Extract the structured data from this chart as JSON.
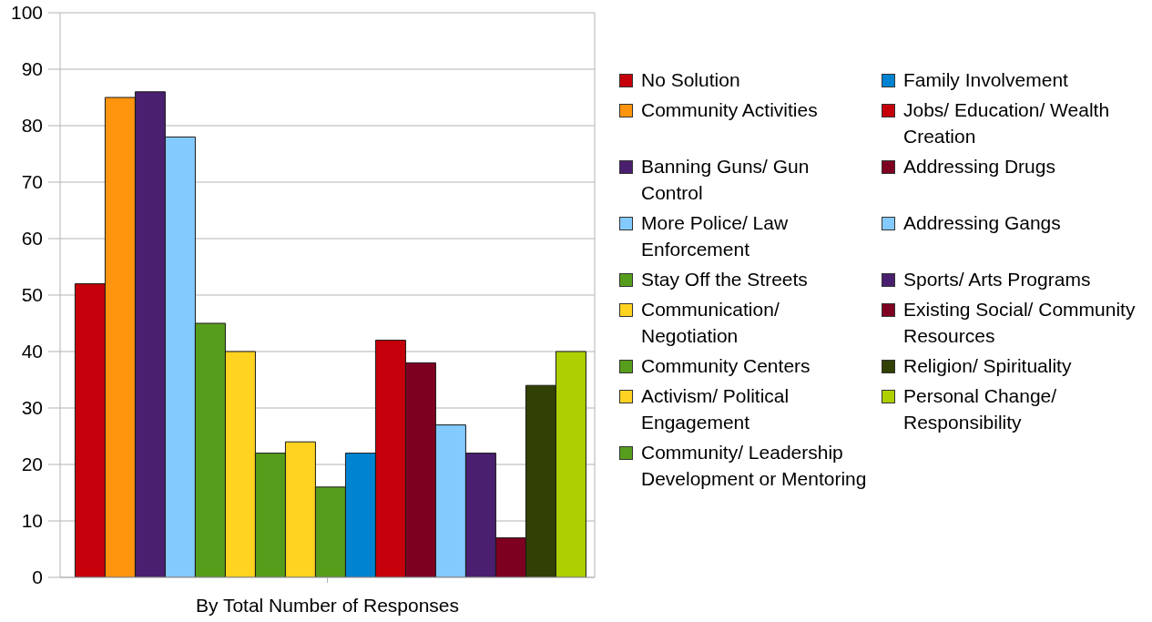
{
  "chart_data": {
    "type": "bar",
    "categories": [
      "By Total Number of Responses"
    ],
    "series": [
      {
        "name": "No Solution",
        "color": "#c5000b",
        "values": [
          52
        ]
      },
      {
        "name": "Community Activities",
        "color": "#ff950e",
        "values": [
          85
        ]
      },
      {
        "name": "Banning Guns/ Gun Control",
        "color": "#4b1f6f",
        "values": [
          86
        ]
      },
      {
        "name": "More Police/ Law Enforcement",
        "color": "#83caff",
        "values": [
          78
        ]
      },
      {
        "name": "Stay Off the Streets",
        "color": "#579d1c",
        "values": [
          45
        ]
      },
      {
        "name": "Communication/ Negotiation",
        "color": "#ffd320",
        "values": [
          40
        ]
      },
      {
        "name": "Community Centers",
        "color": "#579d1c",
        "values": [
          22
        ]
      },
      {
        "name": "Activism/ Political Engagement",
        "color": "#ffd320",
        "values": [
          24
        ]
      },
      {
        "name": "Community/ Leadership Development or Mentoring",
        "color": "#579d1c",
        "values": [
          16
        ]
      },
      {
        "name": "Family Involvement",
        "color": "#0084d1",
        "values": [
          22
        ]
      },
      {
        "name": "Jobs/ Education/ Wealth Creation",
        "color": "#c5000b",
        "values": [
          42
        ]
      },
      {
        "name": "Addressing Drugs",
        "color": "#7e0021",
        "values": [
          38
        ]
      },
      {
        "name": "Addressing Gangs",
        "color": "#83caff",
        "values": [
          27
        ]
      },
      {
        "name": "Sports/ Arts Programs",
        "color": "#4b1f6f",
        "values": [
          22
        ]
      },
      {
        "name": "Existing Social/ Community Resources",
        "color": "#7e0021",
        "values": [
          7
        ]
      },
      {
        "name": "Religion/ Spirituality",
        "color": "#314004",
        "values": [
          34
        ]
      },
      {
        "name": "Personal Change/ Responsibility",
        "color": "#aecf00",
        "values": [
          40
        ]
      }
    ],
    "ylim": [
      0,
      100
    ],
    "yticks": [
      0,
      10,
      20,
      30,
      40,
      50,
      60,
      70,
      80,
      90,
      100
    ],
    "grid": "y",
    "legend": "right"
  }
}
